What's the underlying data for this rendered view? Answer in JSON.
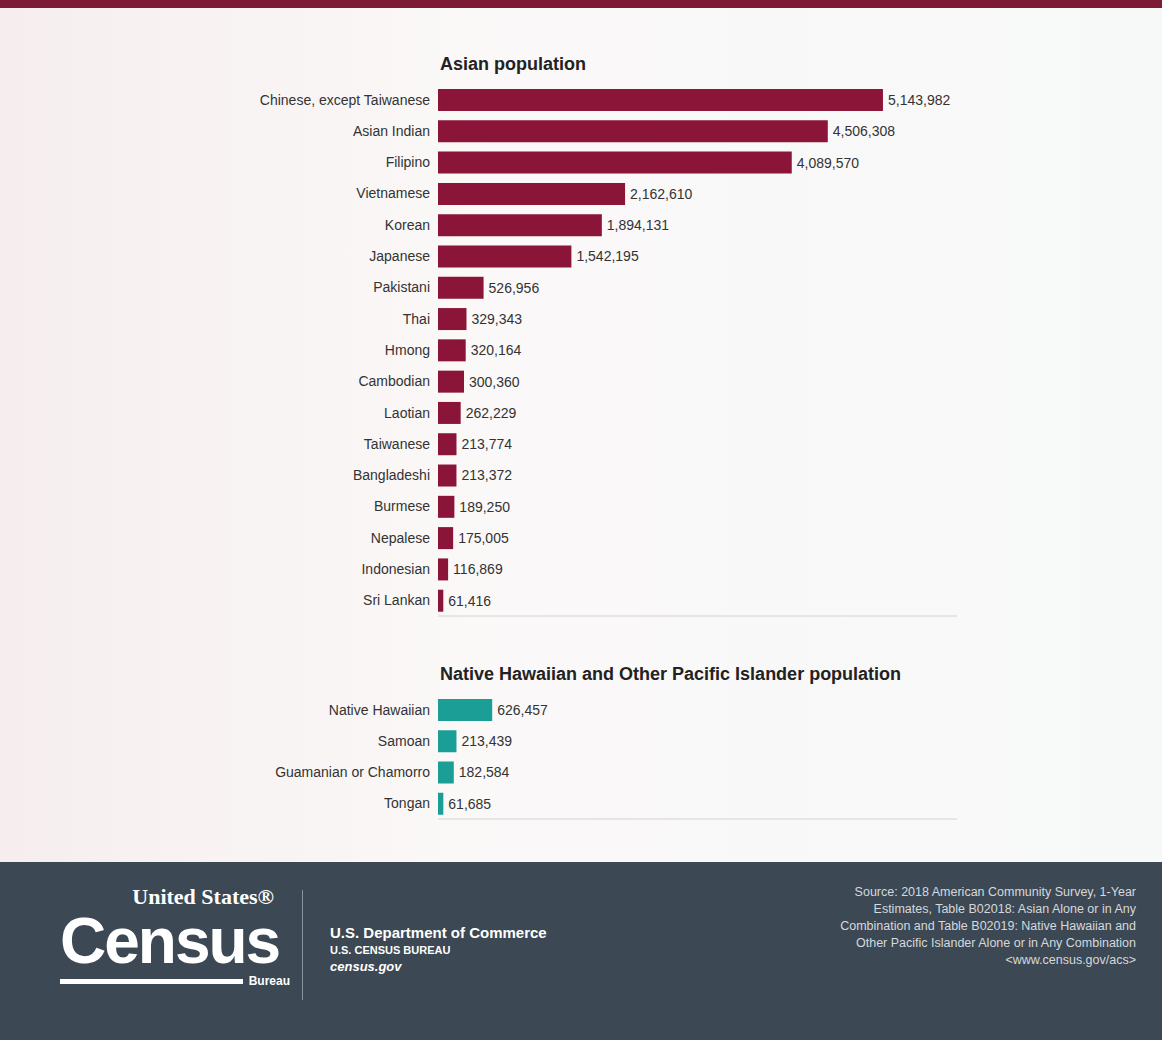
{
  "chart_data": [
    {
      "type": "bar",
      "title": "Asian population",
      "orientation": "horizontal",
      "categories": [
        "Chinese, except Taiwanese",
        "Asian Indian",
        "Filipino",
        "Vietnamese",
        "Korean",
        "Japanese",
        "Pakistani",
        "Thai",
        "Hmong",
        "Cambodian",
        "Laotian",
        "Taiwanese",
        "Bangladeshi",
        "Burmese",
        "Nepalese",
        "Indonesian",
        "Sri Lankan"
      ],
      "values": [
        5143982,
        4506308,
        4089570,
        2162610,
        1894131,
        1542195,
        526956,
        329343,
        320164,
        300360,
        262229,
        213774,
        213372,
        189250,
        175005,
        116869,
        61416
      ],
      "value_labels": [
        "5,143,982",
        "4,506,308",
        "4,089,570",
        "2,162,610",
        "1,894,131",
        "1,542,195",
        "526,956",
        "329,343",
        "320,164",
        "300,360",
        "262,229",
        "213,774",
        "213,372",
        "189,250",
        "175,005",
        "116,869",
        "61,416"
      ],
      "color": "#8a1538",
      "xlim": [
        0,
        6000000
      ],
      "tick_labels": "y",
      "data_labels": true,
      "grid": false
    },
    {
      "type": "bar",
      "title": "Native Hawaiian and Other Pacific Islander population",
      "orientation": "horizontal",
      "categories": [
        "Native Hawaiian",
        "Samoan",
        "Guamanian or Chamorro",
        "Tongan"
      ],
      "values": [
        626457,
        213439,
        182584,
        61685
      ],
      "value_labels": [
        "626,457",
        "213,439",
        "182,584",
        "61,685"
      ],
      "color": "#1a9e96",
      "xlim": [
        0,
        6000000
      ],
      "tick_labels": "y",
      "data_labels": true,
      "grid": false
    }
  ],
  "footer": {
    "logo": [
      "United States®",
      "Census",
      "Bureau"
    ],
    "agency": [
      "U.S. Department of Commerce",
      "U.S. CENSUS BUREAU",
      "census.gov"
    ],
    "source": [
      "Source: 2018 American Community Survey, 1-Year",
      "Estimates, Table B02018: Asian Alone or in Any",
      "Combination and Table B02019: Native Hawaiian and",
      "Other Pacific Islander Alone or in Any Combination",
      "<www.census.gov/acs>"
    ]
  }
}
